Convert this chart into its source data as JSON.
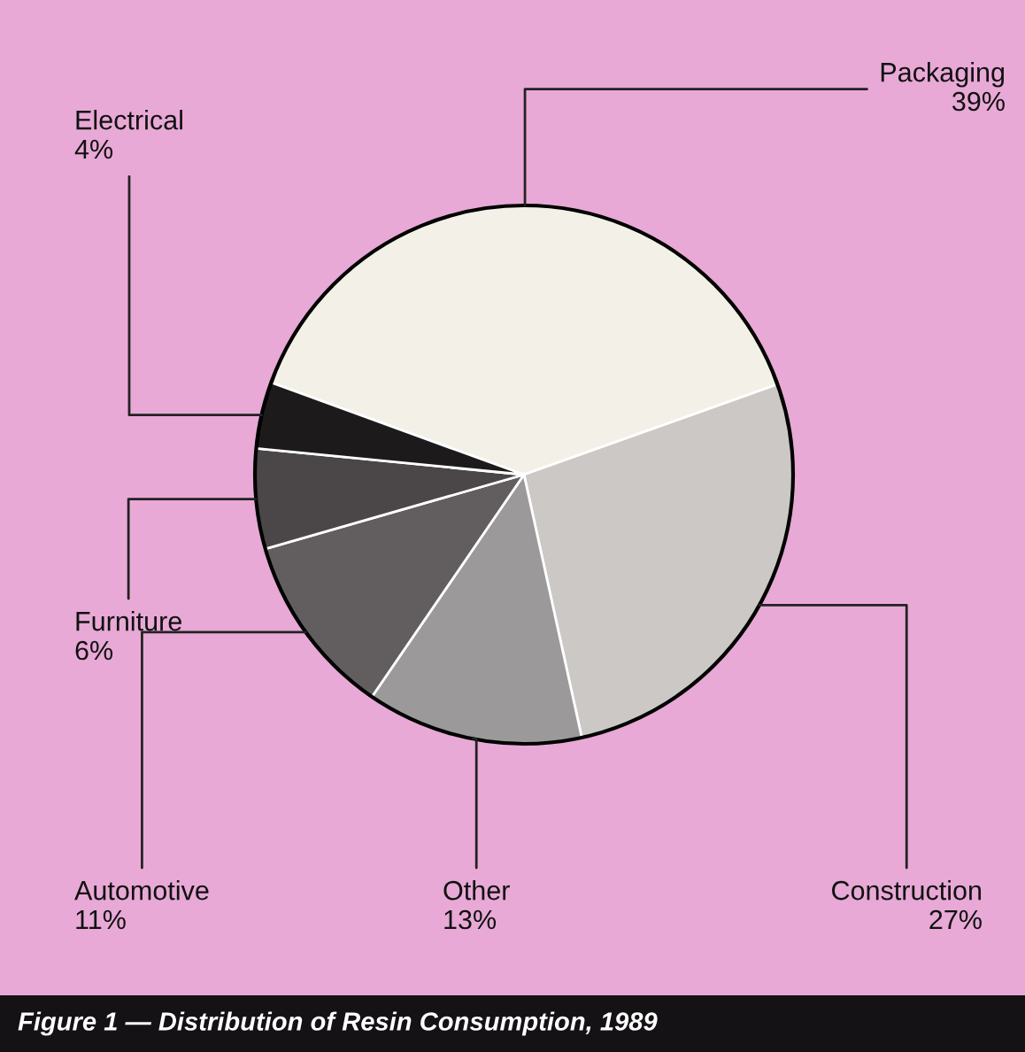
{
  "chart_data": {
    "type": "pie",
    "title": "Figure 1 — Distribution of Resin Consumption, 1989",
    "categories": [
      "Packaging",
      "Construction",
      "Other",
      "Automotive",
      "Furniture",
      "Electrical"
    ],
    "values": [
      39,
      27,
      13,
      11,
      6,
      4
    ],
    "value_labels": [
      "39%",
      "27%",
      "13%",
      "11%",
      "6%",
      "4%"
    ],
    "colors": [
      "#f3f0e8",
      "#cbc8c6",
      "#9b9999",
      "#625e5f",
      "#4b4748",
      "#1c1a1b"
    ],
    "legend": false
  }
}
